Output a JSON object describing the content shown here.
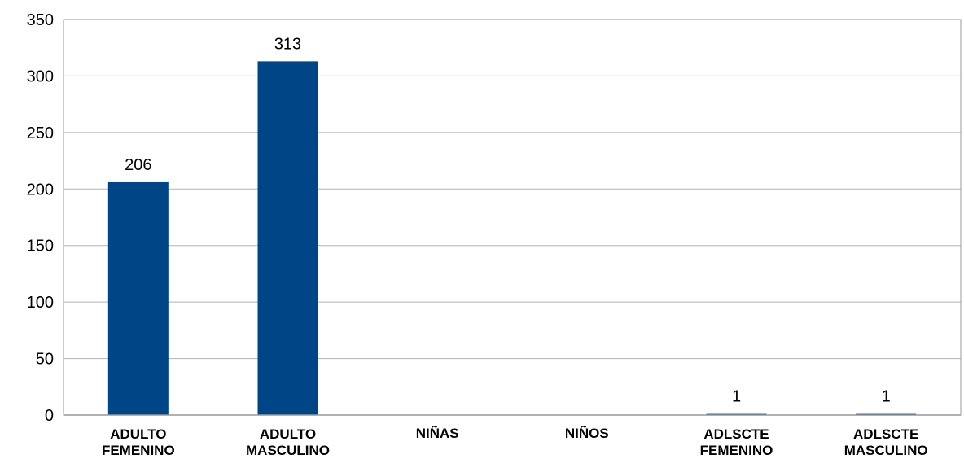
{
  "chart_data": {
    "type": "bar",
    "title": "",
    "xlabel": "",
    "ylabel": "",
    "categories": [
      [
        "ADULTO",
        "FEMENINO"
      ],
      [
        "ADULTO",
        "MASCULINO"
      ],
      [
        "NIÑAS"
      ],
      [
        "NIÑOS"
      ],
      [
        "ADLSCTE",
        "FEMENINO"
      ],
      [
        "ADLSCTE",
        "MASCULINO"
      ]
    ],
    "values": [
      206,
      313,
      0,
      0,
      1,
      1
    ],
    "data_labels": [
      "206",
      "313",
      "",
      "",
      "1",
      "1"
    ],
    "ylim": [
      0,
      350
    ],
    "yticks": [
      0,
      50,
      100,
      150,
      200,
      250,
      300,
      350
    ],
    "grid": true,
    "legend": "none",
    "colors": {
      "bar": "#004586",
      "grid": "#b3b3b3",
      "axis": "#999999"
    }
  }
}
